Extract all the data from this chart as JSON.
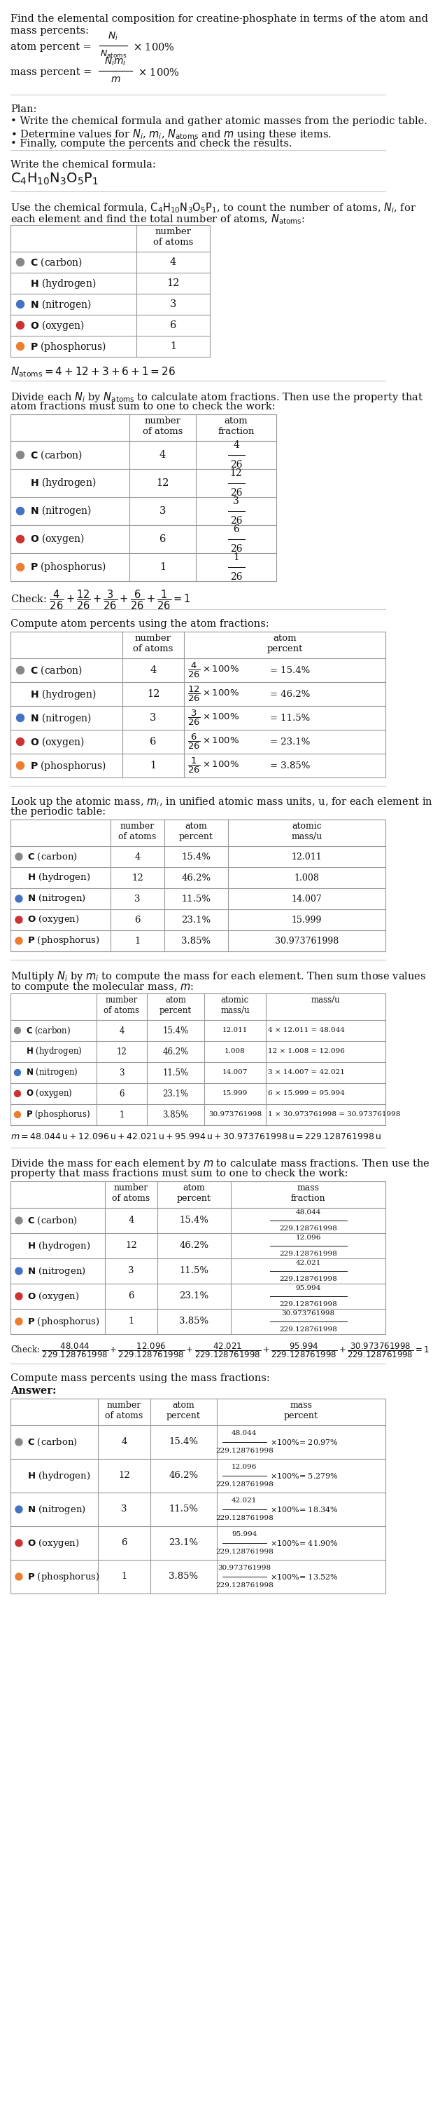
{
  "elements": [
    "C",
    "H",
    "N",
    "O",
    "P"
  ],
  "element_names": [
    "carbon",
    "hydrogen",
    "nitrogen",
    "oxygen",
    "phosphorus"
  ],
  "element_dot_colors": [
    "#888888",
    "#ffffff",
    "#4472c4",
    "#cc3333",
    "#ed7d31"
  ],
  "element_dot_stroke": [
    "#888888",
    "#aaaaaa",
    "#4472c4",
    "#cc3333",
    "#ed7d31"
  ],
  "element_dot_filled": [
    true,
    false,
    true,
    true,
    true
  ],
  "n_atoms_str": [
    "4",
    "12",
    "3",
    "6",
    "1"
  ],
  "atom_pct_vals": [
    "15.4%",
    "46.2%",
    "11.5%",
    "23.1%",
    "3.85%"
  ],
  "atomic_masses_str": [
    "12.011",
    "1.008",
    "14.007",
    "15.999",
    "30.973761998"
  ],
  "mass_formulas": [
    "4 × 12.011 = 48.044",
    "12 × 1.008 = 12.096",
    "3 × 14.007 = 42.021",
    "6 × 15.999 = 95.994",
    "1 × 30.973761998 = 30.973761998"
  ],
  "mass_numerators": [
    "48.044",
    "12.096",
    "42.021",
    "95.994",
    "30.973761998"
  ],
  "mass_frac_den": "229.128761998",
  "mass_pct_results": [
    "= 20.97%",
    "= 5.279%",
    "= 18.34%",
    "= 41.90%",
    "= 13.52%"
  ],
  "bg_color": "#ffffff",
  "border_color": "#999999",
  "sep_color": "#cccccc"
}
